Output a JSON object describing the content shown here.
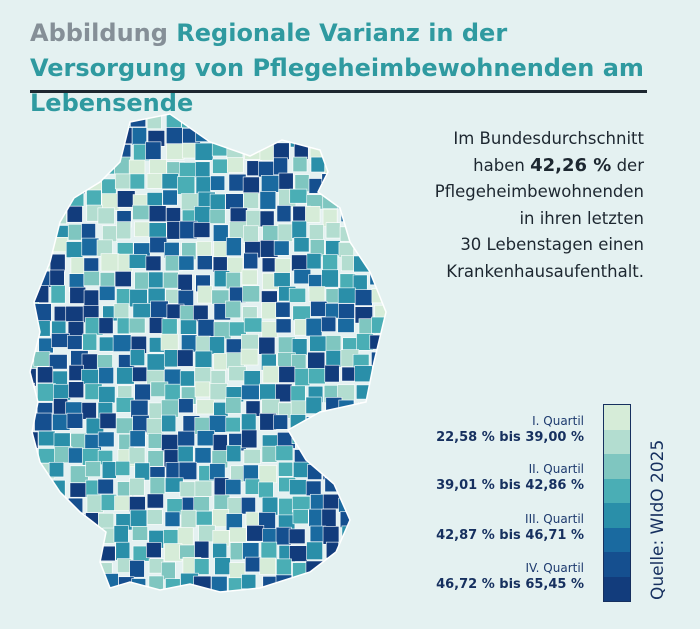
{
  "header": {
    "title_lead": "Abbildung",
    "title_main": "Regionale Varianz in der Versorgung von Pflegeheimbewohnenden am Lebensende"
  },
  "info": {
    "line1": "Im Bundesdurchschnitt",
    "line2_pre": "haben",
    "line2_value": "42,26 %",
    "line2_post": "der",
    "line3": "Pflegeheimbewohnenden",
    "line4": "in ihren letzten",
    "line5": "30 Lebenstagen einen",
    "line6": "Krankenhausaufenthalt."
  },
  "legend": {
    "items": [
      {
        "quartile": "I. Quartil",
        "range": "22,58 % bis 39,00 %"
      },
      {
        "quartile": "II. Quartil",
        "range": "39,01 % bis 42,86 %"
      },
      {
        "quartile": "III. Quartil",
        "range": "42,87 % bis 46,71 %"
      },
      {
        "quartile": "IV. Quartil",
        "range": "46,72 % bis 65,45 %"
      }
    ],
    "colors": [
      "#d6ecd8",
      "#b3ddd0",
      "#7fc6c0",
      "#4aaeb5",
      "#2a8fa9",
      "#1a6aa0",
      "#154f8f",
      "#123c7c"
    ]
  },
  "source": "Quelle: WIdO 2025"
}
